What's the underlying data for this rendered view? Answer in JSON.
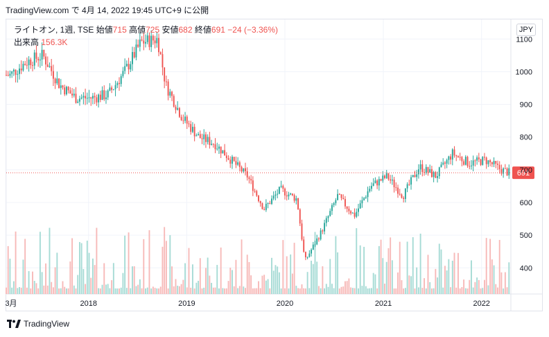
{
  "header": {
    "text": "TradingView.com で 4月 14, 2022 19:45 UTC+9 に公開"
  },
  "legend": {
    "symbol": "ライトオン, 1週, TSE",
    "open_label": "始値",
    "open": "715",
    "high_label": "高値",
    "high": "725",
    "low_label": "安値",
    "low": "682",
    "close_label": "終値",
    "close": "691",
    "change": "−24 (−3.36%)"
  },
  "volume_legend": {
    "label": "出来高",
    "value": "156.3K"
  },
  "currency": "JPY",
  "price_tag": "691",
  "brand": "TradingView",
  "colors": {
    "up": "#26a69a",
    "down": "#ef5350",
    "grid": "#f0f3fa",
    "up_vol": "#a6dbd5",
    "down_vol": "#f7b9b8"
  },
  "chart_data": {
    "type": "candlestick",
    "y_axis_ticks": [
      400,
      500,
      600,
      700,
      800,
      900,
      1000,
      1100
    ],
    "x_axis_labels": [
      "3月",
      "2018",
      "2019",
      "2020",
      "2021",
      "2022"
    ],
    "last_price": 691,
    "ylim": [
      320,
      1160
    ],
    "price_path": [
      {
        "date": "2017-03",
        "close": 990
      },
      {
        "date": "2017-05",
        "close": 1030
      },
      {
        "date": "2017-07",
        "close": 1050
      },
      {
        "date": "2017-09",
        "close": 960
      },
      {
        "date": "2017-11",
        "close": 920
      },
      {
        "date": "2018-01",
        "close": 920
      },
      {
        "date": "2018-03",
        "close": 930
      },
      {
        "date": "2018-05",
        "close": 1000
      },
      {
        "date": "2018-07",
        "close": 1090
      },
      {
        "date": "2018-09",
        "close": 1100
      },
      {
        "date": "2018-10",
        "close": 960
      },
      {
        "date": "2018-12",
        "close": 860
      },
      {
        "date": "2019-02",
        "close": 800
      },
      {
        "date": "2019-04",
        "close": 780
      },
      {
        "date": "2019-06",
        "close": 730
      },
      {
        "date": "2019-08",
        "close": 680
      },
      {
        "date": "2019-10",
        "close": 580
      },
      {
        "date": "2019-12",
        "close": 640
      },
      {
        "date": "2020-02",
        "close": 610
      },
      {
        "date": "2020-03",
        "close": 420
      },
      {
        "date": "2020-05",
        "close": 510
      },
      {
        "date": "2020-07",
        "close": 620
      },
      {
        "date": "2020-09",
        "close": 560
      },
      {
        "date": "2020-11",
        "close": 650
      },
      {
        "date": "2021-01",
        "close": 680
      },
      {
        "date": "2021-03",
        "close": 620
      },
      {
        "date": "2021-05",
        "close": 710
      },
      {
        "date": "2021-07",
        "close": 680
      },
      {
        "date": "2021-09",
        "close": 750
      },
      {
        "date": "2021-11",
        "close": 720
      },
      {
        "date": "2022-01",
        "close": 730
      },
      {
        "date": "2022-03",
        "close": 700
      },
      {
        "date": "2022-04",
        "close": 691
      }
    ]
  }
}
